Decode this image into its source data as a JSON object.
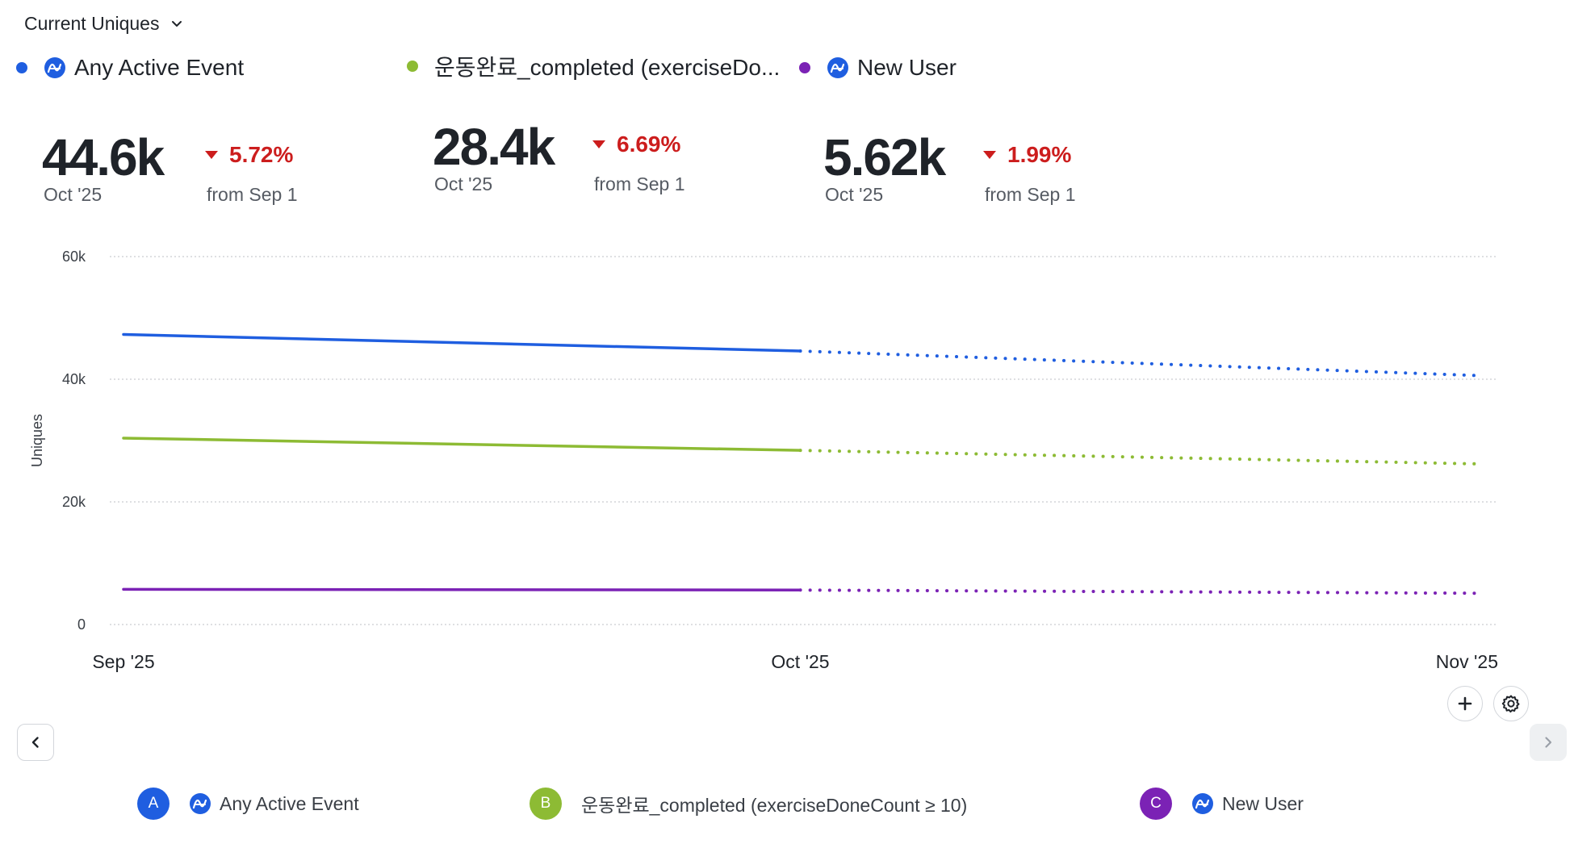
{
  "header": {
    "metric_label": "Current Uniques"
  },
  "legend": [
    {
      "key": "A",
      "label": "Any Active Event",
      "color": "#1f5ee0",
      "icon": "amplitude-icon"
    },
    {
      "key": "B",
      "label": "운동완료_completed (exerciseDo...",
      "color": "#8dbb34",
      "icon": ""
    },
    {
      "key": "C",
      "label": "New User",
      "color": "#7b22b5",
      "icon": "amplitude-icon"
    }
  ],
  "kpis": [
    {
      "value": "44.6k",
      "period": "Oct '25",
      "change": "5.72%",
      "from": "from Sep 1"
    },
    {
      "value": "28.4k",
      "period": "Oct '25",
      "change": "6.69%",
      "from": "from Sep 1"
    },
    {
      "value": "5.62k",
      "period": "Oct '25",
      "change": "1.99%",
      "from": "from Sep 1"
    }
  ],
  "chart_data": {
    "type": "line",
    "ylabel": "Uniques",
    "xlabel": "",
    "ylim": [
      0,
      60000
    ],
    "yticks": [
      0,
      20000,
      40000,
      60000
    ],
    "ytick_labels": [
      "0",
      "20k",
      "40k",
      "60k"
    ],
    "x": [
      "Sep '25",
      "Oct '25",
      "Nov '25"
    ],
    "grid": true,
    "projected_from_index": 1,
    "series": [
      {
        "name": "Any Active Event",
        "color": "#1f5ee0",
        "values": [
          47300,
          44600,
          40600
        ]
      },
      {
        "name": "운동완료_completed (exerciseDoneCount ≥ 10)",
        "color": "#8dbb34",
        "values": [
          30400,
          28400,
          26200
        ]
      },
      {
        "name": "New User",
        "color": "#7b22b5",
        "values": [
          5740,
          5620,
          5100
        ]
      }
    ]
  },
  "legend_bottom": [
    {
      "badge": "A",
      "label": "Any Active Event",
      "color": "#1f5ee0",
      "icon": "amplitude-icon"
    },
    {
      "badge": "B",
      "label": "운동완료_completed (exerciseDoneCount ≥ 10)",
      "color": "#8dbb34",
      "icon": ""
    },
    {
      "badge": "C",
      "label": "New User",
      "color": "#7b22b5",
      "icon": "amplitude-icon"
    }
  ]
}
